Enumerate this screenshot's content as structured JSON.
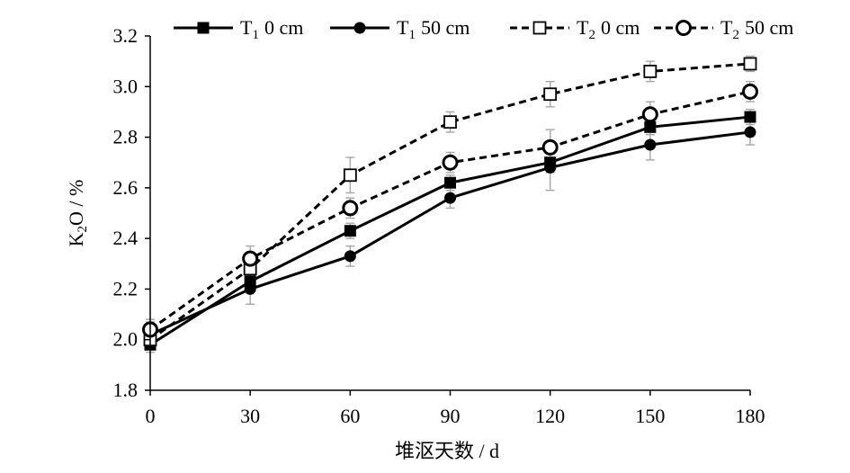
{
  "chart_data": {
    "type": "line",
    "title": "",
    "xlabel": "堆沤天数 / d",
    "ylabel": {
      "main": "K",
      "sub": "2",
      "rest": "O / %"
    },
    "x": [
      0,
      30,
      60,
      90,
      120,
      150,
      180
    ],
    "xticks": [
      "0",
      "30",
      "60",
      "90",
      "120",
      "150",
      "180"
    ],
    "yticks": [
      "1.8",
      "2.0",
      "2.2",
      "2.4",
      "2.6",
      "2.8",
      "3.0",
      "3.2"
    ],
    "xlim": [
      0,
      180
    ],
    "ylim": [
      1.8,
      3.2
    ],
    "grid": false,
    "legend_position": "top",
    "series": [
      {
        "name_main": "T",
        "name_sub": "1",
        "name_rest": "0 cm",
        "line": "solid",
        "marker": "square-filled",
        "values": [
          1.98,
          2.23,
          2.43,
          2.62,
          2.7,
          2.84,
          2.88
        ],
        "errors": [
          0.03,
          0.02,
          0.03,
          0.03,
          0.04,
          0.03,
          0.03
        ]
      },
      {
        "name_main": "T",
        "name_sub": "1",
        "name_rest": "50 cm",
        "line": "solid",
        "marker": "circle-filled",
        "values": [
          2.02,
          2.2,
          2.33,
          2.56,
          2.68,
          2.77,
          2.82
        ],
        "errors": [
          0.05,
          0.06,
          0.04,
          0.04,
          0.09,
          0.06,
          0.05
        ]
      },
      {
        "name_main": "T",
        "name_sub": "2",
        "name_rest": "0 cm",
        "line": "dashed",
        "marker": "square-open",
        "values": [
          2.0,
          2.28,
          2.65,
          2.86,
          2.97,
          3.06,
          3.09
        ],
        "errors": [
          0.04,
          0.04,
          0.07,
          0.04,
          0.05,
          0.04,
          0.03
        ]
      },
      {
        "name_main": "T",
        "name_sub": "2",
        "name_rest": "50 cm",
        "line": "dashed",
        "marker": "circle-open",
        "values": [
          2.04,
          2.32,
          2.52,
          2.7,
          2.76,
          2.89,
          2.98
        ],
        "errors": [
          0.04,
          0.05,
          0.04,
          0.04,
          0.07,
          0.05,
          0.04
        ]
      }
    ]
  }
}
